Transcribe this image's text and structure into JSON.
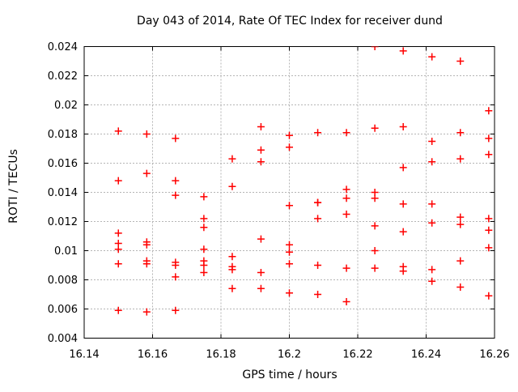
{
  "chart_data": {
    "type": "scatter",
    "title": "Day 043 of 2014, Rate Of TEC Index for receiver dund",
    "xlabel": "GPS time / hours",
    "ylabel": "ROTI / TECUs",
    "xlim": [
      16.14,
      16.26
    ],
    "ylim": [
      0.004,
      0.024
    ],
    "grid": true,
    "legend": "none",
    "marker": {
      "shape": "plus",
      "color": "#ff0000"
    },
    "colors": {
      "marker": "#ff0000",
      "grid": "#b5b5b5",
      "axis": "#000000",
      "text": "#000000",
      "background": "#ffffff"
    },
    "xticks": {
      "values": [
        16.14,
        16.16,
        16.18,
        16.2,
        16.22,
        16.24,
        16.26
      ],
      "labels": [
        "16.14",
        "16.16",
        "16.18",
        "16.2",
        "16.22",
        "16.24",
        "16.26"
      ]
    },
    "yticks": {
      "values": [
        0.004,
        0.006,
        0.008,
        0.01,
        0.012,
        0.014,
        0.016,
        0.018,
        0.02,
        0.022,
        0.024
      ],
      "labels": [
        "0.004",
        "0.006",
        "0.008",
        "0.01",
        "0.012",
        "0.014",
        "0.016",
        "0.018",
        "0.02",
        "0.022",
        "0.024"
      ]
    },
    "series": [
      {
        "name": "ROTI",
        "points": [
          [
            16.15,
            0.0182
          ],
          [
            16.15,
            0.0148
          ],
          [
            16.15,
            0.0112
          ],
          [
            16.15,
            0.0105
          ],
          [
            16.15,
            0.0101
          ],
          [
            16.15,
            0.0091
          ],
          [
            16.15,
            0.0059
          ],
          [
            16.1583,
            0.018
          ],
          [
            16.1583,
            0.0153
          ],
          [
            16.1583,
            0.0106
          ],
          [
            16.1583,
            0.0104
          ],
          [
            16.1583,
            0.0093
          ],
          [
            16.1583,
            0.0091
          ],
          [
            16.1583,
            0.0058
          ],
          [
            16.1667,
            0.0177
          ],
          [
            16.1667,
            0.0148
          ],
          [
            16.1667,
            0.0138
          ],
          [
            16.1667,
            0.0092
          ],
          [
            16.1667,
            0.009
          ],
          [
            16.1667,
            0.0082
          ],
          [
            16.1667,
            0.0059
          ],
          [
            16.175,
            0.0137
          ],
          [
            16.175,
            0.0122
          ],
          [
            16.175,
            0.0116
          ],
          [
            16.175,
            0.0101
          ],
          [
            16.175,
            0.0093
          ],
          [
            16.175,
            0.009
          ],
          [
            16.175,
            0.0085
          ],
          [
            16.1833,
            0.0163
          ],
          [
            16.1833,
            0.0144
          ],
          [
            16.1833,
            0.0096
          ],
          [
            16.1833,
            0.0089
          ],
          [
            16.1833,
            0.0087
          ],
          [
            16.1833,
            0.0074
          ],
          [
            16.1917,
            0.0185
          ],
          [
            16.1917,
            0.0169
          ],
          [
            16.1917,
            0.0161
          ],
          [
            16.1917,
            0.0108
          ],
          [
            16.1917,
            0.0085
          ],
          [
            16.1917,
            0.0074
          ],
          [
            16.2,
            0.0179
          ],
          [
            16.2,
            0.0171
          ],
          [
            16.2,
            0.0131
          ],
          [
            16.2,
            0.0104
          ],
          [
            16.2,
            0.0099
          ],
          [
            16.2,
            0.0091
          ],
          [
            16.2,
            0.0071
          ],
          [
            16.2083,
            0.0181
          ],
          [
            16.2083,
            0.0133
          ],
          [
            16.2083,
            0.0133
          ],
          [
            16.2083,
            0.0122
          ],
          [
            16.2083,
            0.009
          ],
          [
            16.2083,
            0.007
          ],
          [
            16.2167,
            0.0181
          ],
          [
            16.2167,
            0.0142
          ],
          [
            16.2167,
            0.0136
          ],
          [
            16.2167,
            0.0125
          ],
          [
            16.2167,
            0.0088
          ],
          [
            16.2167,
            0.0065
          ],
          [
            16.225,
            0.024
          ],
          [
            16.225,
            0.0184
          ],
          [
            16.225,
            0.014
          ],
          [
            16.225,
            0.0136
          ],
          [
            16.225,
            0.0117
          ],
          [
            16.225,
            0.01
          ],
          [
            16.225,
            0.0088
          ],
          [
            16.2333,
            0.0237
          ],
          [
            16.2333,
            0.0185
          ],
          [
            16.2333,
            0.0157
          ],
          [
            16.2333,
            0.0132
          ],
          [
            16.2333,
            0.0113
          ],
          [
            16.2333,
            0.0089
          ],
          [
            16.2333,
            0.0086
          ],
          [
            16.2417,
            0.0233
          ],
          [
            16.2417,
            0.0175
          ],
          [
            16.2417,
            0.0161
          ],
          [
            16.2417,
            0.0132
          ],
          [
            16.2417,
            0.0119
          ],
          [
            16.2417,
            0.0087
          ],
          [
            16.2417,
            0.0079
          ],
          [
            16.25,
            0.023
          ],
          [
            16.25,
            0.0181
          ],
          [
            16.25,
            0.0163
          ],
          [
            16.25,
            0.0123
          ],
          [
            16.25,
            0.0118
          ],
          [
            16.25,
            0.0093
          ],
          [
            16.25,
            0.0075
          ],
          [
            16.2583,
            0.0196
          ],
          [
            16.2583,
            0.0177
          ],
          [
            16.2583,
            0.0166
          ],
          [
            16.2583,
            0.0122
          ],
          [
            16.2583,
            0.0114
          ],
          [
            16.2583,
            0.0102
          ],
          [
            16.2583,
            0.0069
          ]
        ]
      }
    ]
  }
}
